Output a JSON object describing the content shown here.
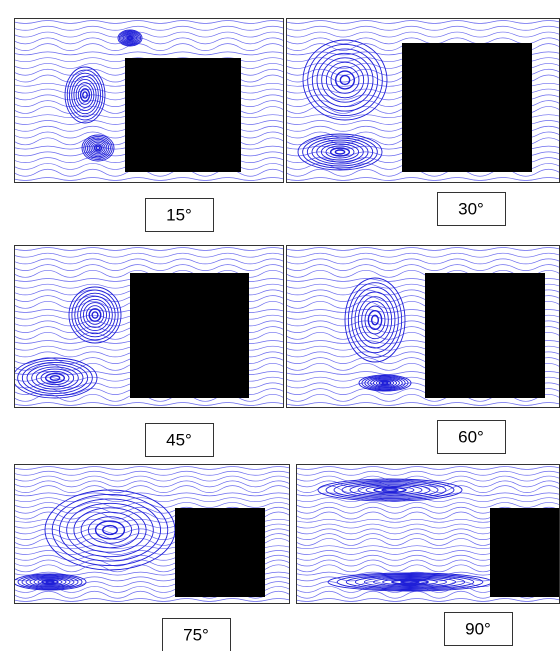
{
  "panels": [
    {
      "label": "15°"
    },
    {
      "label": "30°"
    },
    {
      "label": "45°"
    },
    {
      "label": "60°"
    },
    {
      "label": "75°"
    },
    {
      "label": "90°"
    }
  ]
}
